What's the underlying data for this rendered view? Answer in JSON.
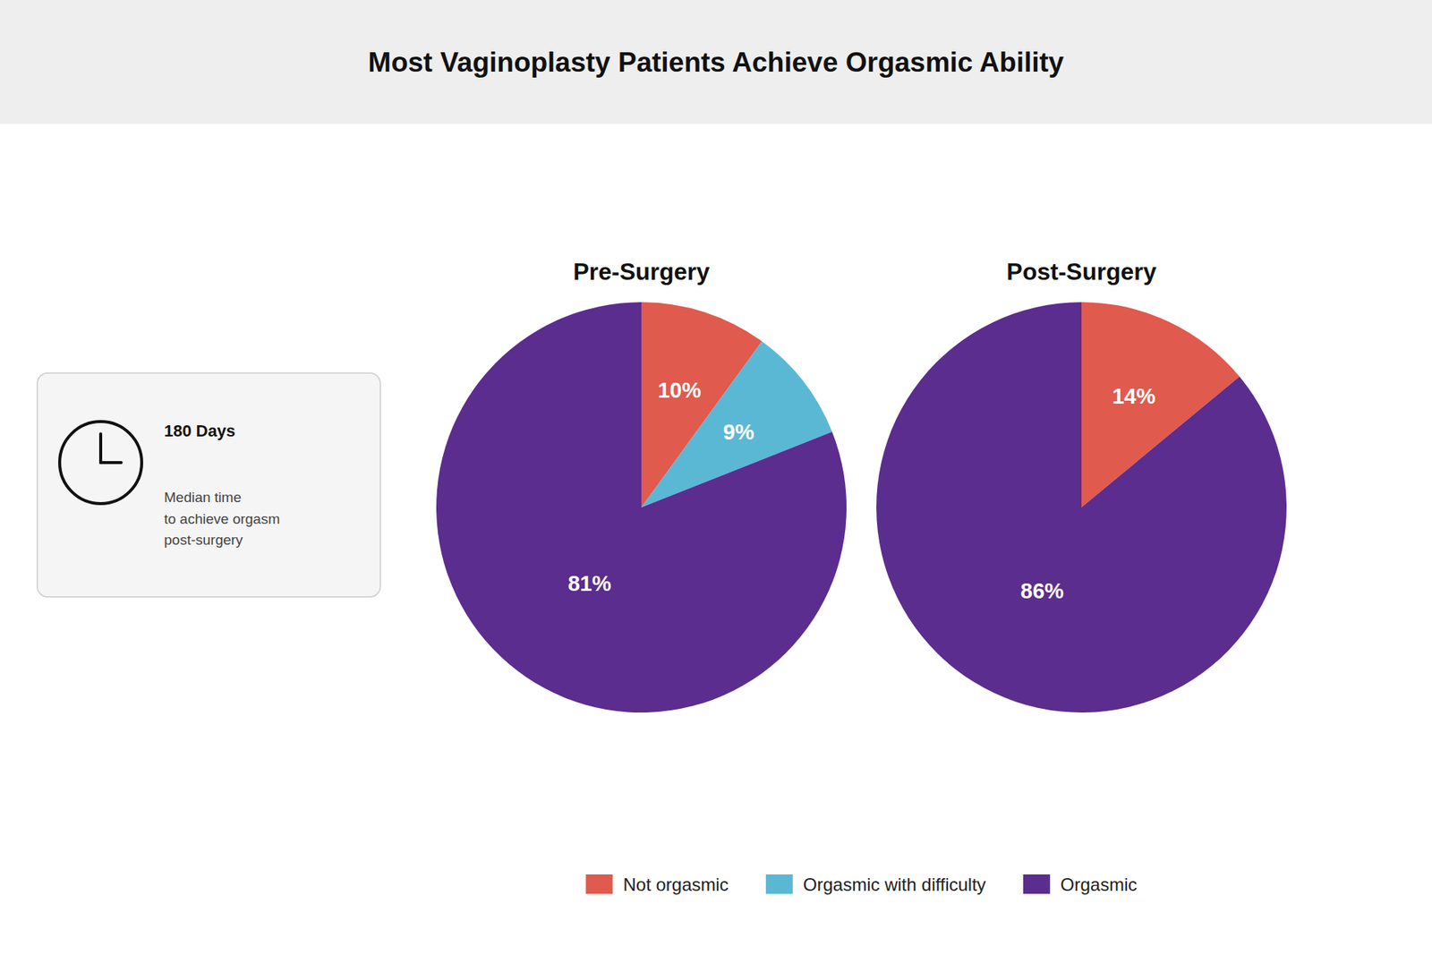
{
  "chart_data": [
    {
      "type": "pie",
      "title": "Most Vaginoplasty Patients Achieve Orgasmic Ability",
      "subtitle": "Pre-Surgery",
      "categories": [
        "Not orgasmic",
        "Orgasmic with difficulty",
        "Orgasmic"
      ],
      "values": [
        10,
        9,
        81
      ],
      "value_labels": [
        "10%",
        "9%",
        "81%"
      ],
      "colors": [
        "#e05a4e",
        "#5bb8d4",
        "#5b2d8e"
      ],
      "data_labels": true,
      "legend": "bottom",
      "annotations": [
        "180 Days",
        "Median time\nto achieve orgasm\npost-surgery"
      ]
    },
    {
      "type": "pie",
      "subtitle": "Post-Surgery",
      "categories": [
        "Not orgasmic",
        "Orgasmic"
      ],
      "values": [
        14,
        86
      ],
      "value_labels": [
        "14%",
        "86%"
      ],
      "colors": [
        "#e05a4e",
        "#5b2d8e"
      ],
      "data_labels": true
    }
  ]
}
